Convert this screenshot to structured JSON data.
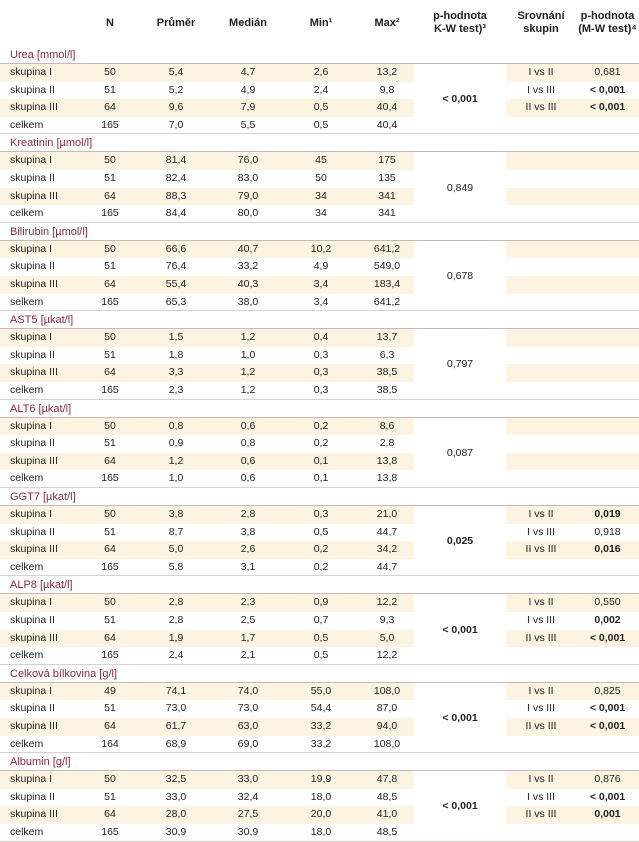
{
  "header": {
    "n": "N",
    "prumer": "Průměr",
    "median": "Medián",
    "min": "Min¹",
    "max": "Max²",
    "kw_line1": "p-hodnota",
    "kw_line2": "K-W test)³",
    "srov_line1": "Srovnání",
    "srov_line2": "skupin",
    "mw_line1": "p-hodnota",
    "mw_line2": "(M-W test)⁴"
  },
  "sections": [
    {
      "title": "Urea [mmol/l]",
      "kw": "< 0,001",
      "kw_bold": true,
      "rows": [
        {
          "label": "skupina I",
          "n": "50",
          "prumer": "5,4",
          "median": "4,7",
          "min": "2,6",
          "max": "13,2",
          "srov": "I vs II",
          "mw": "0,681",
          "mw_bold": false
        },
        {
          "label": "skupina II",
          "n": "51",
          "prumer": "5,2",
          "median": "4,9",
          "min": "2,4",
          "max": "9,8",
          "srov": "I vs III",
          "mw": "< 0,001",
          "mw_bold": true
        },
        {
          "label": "skupina III",
          "n": "64",
          "prumer": "9,6",
          "median": "7,9",
          "min": "0,5",
          "max": "40,4",
          "srov": "II vs III",
          "mw": "< 0,001",
          "mw_bold": true
        },
        {
          "label": "celkem",
          "n": "165",
          "prumer": "7,0",
          "median": "5,5",
          "min": "0,5",
          "max": "40,4",
          "srov": "",
          "mw": "",
          "mw_bold": false
        }
      ]
    },
    {
      "title": "Kreatinin [µmol/l]",
      "kw": "0,849",
      "kw_bold": false,
      "rows": [
        {
          "label": "skupina I",
          "n": "50",
          "prumer": "81,4",
          "median": "76,0",
          "min": "45",
          "max": "175",
          "srov": "",
          "mw": "",
          "mw_bold": false
        },
        {
          "label": "skupina II",
          "n": "51",
          "prumer": "82,4",
          "median": "83,0",
          "min": "50",
          "max": "135",
          "srov": "",
          "mw": "",
          "mw_bold": false
        },
        {
          "label": "skupina III",
          "n": "64",
          "prumer": "88,3",
          "median": "79,0",
          "min": "34",
          "max": "341",
          "srov": "",
          "mw": "",
          "mw_bold": false
        },
        {
          "label": "celkem",
          "n": "165",
          "prumer": "84,4",
          "median": "80,0",
          "min": "34",
          "max": "341",
          "srov": "",
          "mw": "",
          "mw_bold": false
        }
      ]
    },
    {
      "title": "Bilirubin [µmol/l]",
      "kw": "0,678",
      "kw_bold": false,
      "rows": [
        {
          "label": "skupina I",
          "n": "50",
          "prumer": "66,6",
          "median": "40,7",
          "min": "10,2",
          "max": "641,2",
          "srov": "",
          "mw": "",
          "mw_bold": false
        },
        {
          "label": "skupina II",
          "n": "51",
          "prumer": "76,4",
          "median": "33,2",
          "min": "4,9",
          "max": "549,0",
          "srov": "",
          "mw": "",
          "mw_bold": false
        },
        {
          "label": "skupina III",
          "n": "64",
          "prumer": "55,4",
          "median": "40,3",
          "min": "3,4",
          "max": "183,4",
          "srov": "",
          "mw": "",
          "mw_bold": false
        },
        {
          "label": "selkem",
          "n": "165",
          "prumer": "65,3",
          "median": "38,0",
          "min": "3,4",
          "max": "641,2",
          "srov": "",
          "mw": "",
          "mw_bold": false
        }
      ]
    },
    {
      "title": "AST5 [µkat/l]",
      "kw": "0,797",
      "kw_bold": false,
      "rows": [
        {
          "label": "skupina I",
          "n": "50",
          "prumer": "1,5",
          "median": "1,2",
          "min": "0,4",
          "max": "13,7",
          "srov": "",
          "mw": "",
          "mw_bold": false
        },
        {
          "label": "skupina II",
          "n": "51",
          "prumer": "1,8",
          "median": "1,0",
          "min": "0,3",
          "max": "6,3",
          "srov": "",
          "mw": "",
          "mw_bold": false
        },
        {
          "label": "skupina III",
          "n": "64",
          "prumer": "3,3",
          "median": "1,2",
          "min": "0,3",
          "max": "38,5",
          "srov": "",
          "mw": "",
          "mw_bold": false
        },
        {
          "label": "celkem",
          "n": "165",
          "prumer": "2,3",
          "median": "1,2",
          "min": "0,3",
          "max": "38,5",
          "srov": "",
          "mw": "",
          "mw_bold": false
        }
      ]
    },
    {
      "title": "ALT6 [µkat/l]",
      "kw": "0,087",
      "kw_bold": false,
      "rows": [
        {
          "label": "skupina I",
          "n": "50",
          "prumer": "0,8",
          "median": "0,6",
          "min": "0,2",
          "max": "8,6",
          "srov": "",
          "mw": "",
          "mw_bold": false
        },
        {
          "label": "skupina II",
          "n": "51",
          "prumer": "0,9",
          "median": "0,8",
          "min": "0,2",
          "max": "2,8",
          "srov": "",
          "mw": "",
          "mw_bold": false
        },
        {
          "label": "skupina III",
          "n": "64",
          "prumer": "1,2",
          "median": "0,6",
          "min": "0,1",
          "max": "13,8",
          "srov": "",
          "mw": "",
          "mw_bold": false
        },
        {
          "label": "celkem",
          "n": "165",
          "prumer": "1,0",
          "median": "0,6",
          "min": "0,1",
          "max": "13,8",
          "srov": "",
          "mw": "",
          "mw_bold": false
        }
      ]
    },
    {
      "title": "GGT7 [µkat/l]",
      "kw": "0,025",
      "kw_bold": true,
      "rows": [
        {
          "label": "skupina I",
          "n": "50",
          "prumer": "3,8",
          "median": "2,8",
          "min": "0,3",
          "max": "21,0",
          "srov": "I vs II",
          "mw": "0,019",
          "mw_bold": true
        },
        {
          "label": "skupina II",
          "n": "51",
          "prumer": "8,7",
          "median": "3,8",
          "min": "0,5",
          "max": "44,7",
          "srov": "I vs III",
          "mw": "0,918",
          "mw_bold": false
        },
        {
          "label": "skupina III",
          "n": "64",
          "prumer": "5,0",
          "median": "2,6",
          "min": "0,2",
          "max": "34,2",
          "srov": "II vs III",
          "mw": "0,016",
          "mw_bold": true
        },
        {
          "label": "celkem",
          "n": "165",
          "prumer": "5,8",
          "median": "3,1",
          "min": "0,2",
          "max": "44,7",
          "srov": "",
          "mw": "",
          "mw_bold": false
        }
      ]
    },
    {
      "title": "ALP8 [µkat/l]",
      "kw": "< 0,001",
      "kw_bold": true,
      "rows": [
        {
          "label": "skupina I",
          "n": "50",
          "prumer": "2,8",
          "median": "2,3",
          "min": "0,9",
          "max": "12,2",
          "srov": "I vs II",
          "mw": "0,550",
          "mw_bold": false
        },
        {
          "label": "skupina II",
          "n": "51",
          "prumer": "2,8",
          "median": "2,5",
          "min": "0,7",
          "max": "9,3",
          "srov": "I vs III",
          "mw": "0,002",
          "mw_bold": true
        },
        {
          "label": "skupina III",
          "n": "64",
          "prumer": "1,9",
          "median": "1,7",
          "min": "0,5",
          "max": "5,0",
          "srov": "II vs III",
          "mw": "< 0,001",
          "mw_bold": true
        },
        {
          "label": "celkem",
          "n": "165",
          "prumer": "2,4",
          "median": "2,1",
          "min": "0,5",
          "max": "12,2",
          "srov": "",
          "mw": "",
          "mw_bold": false
        }
      ]
    },
    {
      "title": "Celková bílkovina [g/l]",
      "kw": "< 0,001",
      "kw_bold": true,
      "rows": [
        {
          "label": "skupina I",
          "n": "49",
          "prumer": "74,1",
          "median": "74,0",
          "min": "55,0",
          "max": "108,0",
          "srov": "I vs II",
          "mw": "0,825",
          "mw_bold": false
        },
        {
          "label": "skupina II",
          "n": "51",
          "prumer": "73,0",
          "median": "73,0",
          "min": "54,4",
          "max": "87,0",
          "srov": "I vs III",
          "mw": "< 0,001",
          "mw_bold": true
        },
        {
          "label": "skupina III",
          "n": "64",
          "prumer": "61,7",
          "median": "63,0",
          "min": "33,2",
          "max": "94,0",
          "srov": "II vs III",
          "mw": "< 0,001",
          "mw_bold": true
        },
        {
          "label": "celkem",
          "n": "164",
          "prumer": "68,9",
          "median": "69,0",
          "min": "33,2",
          "max": "108,0",
          "srov": "",
          "mw": "",
          "mw_bold": false
        }
      ]
    },
    {
      "title": "Albumin [g/l]",
      "kw": "< 0,001",
      "kw_bold": true,
      "rows": [
        {
          "label": "skupina I",
          "n": "50",
          "prumer": "32,5",
          "median": "33,0",
          "min": "19,9",
          "max": "47,8",
          "srov": "I vs II",
          "mw": "0,876",
          "mw_bold": false
        },
        {
          "label": "skupina II",
          "n": "51",
          "prumer": "33,0",
          "median": "32,4",
          "min": "18,0",
          "max": "48,5",
          "srov": "I vs III",
          "mw": "< 0,001",
          "mw_bold": true
        },
        {
          "label": "skupina III",
          "n": "64",
          "prumer": "28,0",
          "median": "27,5",
          "min": "20,0",
          "max": "41,0",
          "srov": "II vs III",
          "mw": "0,001",
          "mw_bold": true
        },
        {
          "label": "celkem",
          "n": "165",
          "prumer": "30,9",
          "median": "30,9",
          "min": "18,0",
          "max": "48,5",
          "srov": "",
          "mw": "",
          "mw_bold": false
        }
      ]
    }
  ]
}
